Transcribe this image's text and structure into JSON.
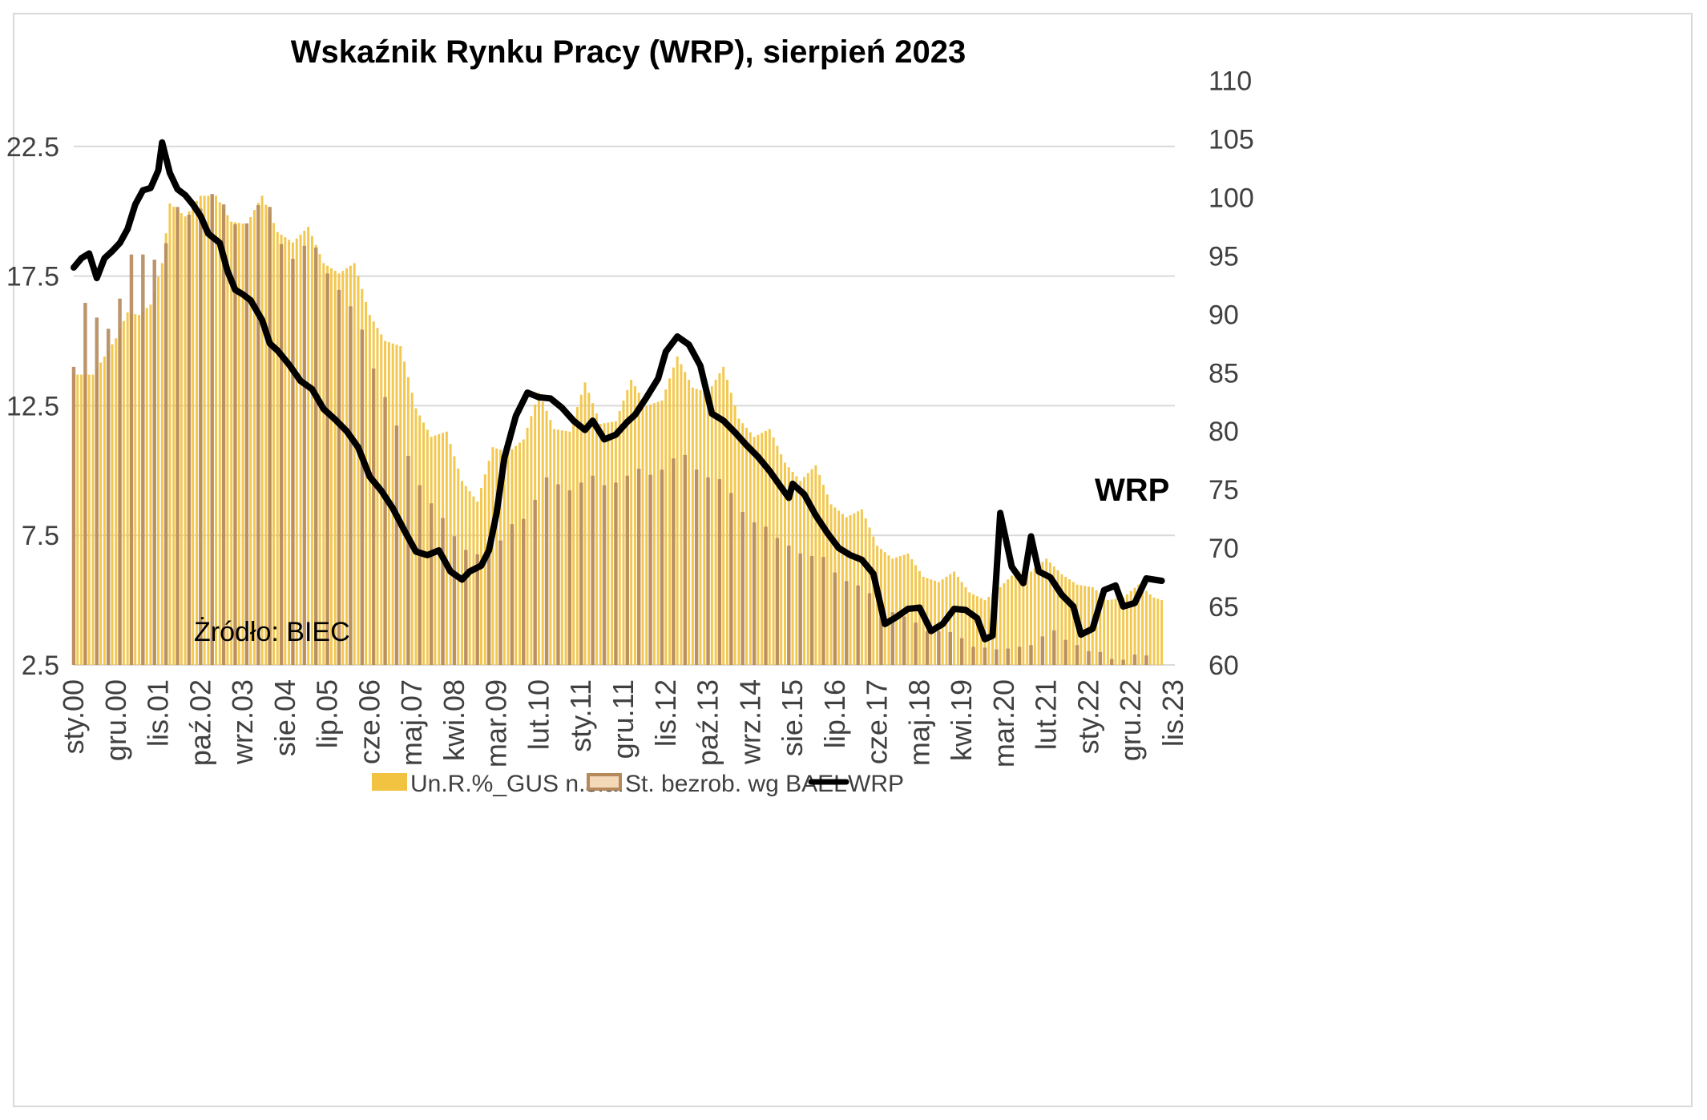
{
  "chart_data": {
    "type": "bar+line",
    "title": "Wskaźnik Rynku Pracy (WRP), sierpień 2023",
    "source_note": "Żródło: BIEC",
    "line_label": "WRP",
    "y_left": {
      "ticks": [
        "2.5",
        "7.5",
        "12.5",
        "17.5",
        "22.5"
      ],
      "ylim": [
        2.5,
        25
      ]
    },
    "y_right": {
      "ticks": [
        "60",
        "65",
        "70",
        "75",
        "80",
        "85",
        "90",
        "95",
        "100",
        "105",
        "110"
      ],
      "ylim": [
        60,
        110
      ]
    },
    "x_axis": {
      "start": "2000-01",
      "end": "2023-11",
      "tick_labels": [
        "sty.00",
        "gru.00",
        "lis.01",
        "paź.02",
        "wrz.03",
        "sie.04",
        "lip.05",
        "cze.06",
        "maj.07",
        "kwi.08",
        "mar.09",
        "lut.10",
        "sty.11",
        "gru.11",
        "lis.12",
        "paź.13",
        "wrz.14",
        "sie.15",
        "lip.16",
        "cze.17",
        "maj.18",
        "kwi.19",
        "mar.20",
        "lut.21",
        "sty.22",
        "gru.22",
        "lis.23"
      ]
    },
    "grid": true,
    "legend_position": "bottom",
    "series": [
      {
        "name": "Un.R.%_GUS n.s.a.",
        "type": "bar",
        "color": "#f2c341",
        "points": [
          [
            "2000-01",
            13.7
          ],
          [
            "2000-06",
            13.7
          ],
          [
            "2000-12",
            15.1
          ],
          [
            "2001-03",
            16.1
          ],
          [
            "2001-06",
            16.0
          ],
          [
            "2001-09",
            16.4
          ],
          [
            "2001-12",
            18.0
          ],
          [
            "2002-02",
            20.3
          ],
          [
            "2002-06",
            19.8
          ],
          [
            "2002-10",
            20.6
          ],
          [
            "2003-02",
            20.6
          ],
          [
            "2003-06",
            19.6
          ],
          [
            "2003-10",
            19.5
          ],
          [
            "2004-02",
            20.6
          ],
          [
            "2004-06",
            19.2
          ],
          [
            "2004-10",
            18.8
          ],
          [
            "2005-02",
            19.4
          ],
          [
            "2005-06",
            18.0
          ],
          [
            "2005-10",
            17.6
          ],
          [
            "2006-02",
            18.0
          ],
          [
            "2006-06",
            16.0
          ],
          [
            "2006-10",
            15.0
          ],
          [
            "2007-02",
            14.8
          ],
          [
            "2007-06",
            12.4
          ],
          [
            "2007-10",
            11.3
          ],
          [
            "2008-02",
            11.5
          ],
          [
            "2008-06",
            9.6
          ],
          [
            "2008-10",
            8.8
          ],
          [
            "2009-02",
            10.9
          ],
          [
            "2009-06",
            10.7
          ],
          [
            "2009-10",
            11.2
          ],
          [
            "2010-02",
            13.0
          ],
          [
            "2010-06",
            11.6
          ],
          [
            "2010-10",
            11.5
          ],
          [
            "2011-02",
            13.4
          ],
          [
            "2011-06",
            11.8
          ],
          [
            "2011-10",
            11.9
          ],
          [
            "2012-02",
            13.5
          ],
          [
            "2012-06",
            12.5
          ],
          [
            "2012-10",
            12.7
          ],
          [
            "2013-02",
            14.4
          ],
          [
            "2013-06",
            13.2
          ],
          [
            "2013-10",
            13.0
          ],
          [
            "2014-02",
            14.0
          ],
          [
            "2014-06",
            12.0
          ],
          [
            "2014-10",
            11.3
          ],
          [
            "2015-02",
            11.6
          ],
          [
            "2015-06",
            10.3
          ],
          [
            "2015-10",
            9.6
          ],
          [
            "2016-02",
            10.2
          ],
          [
            "2016-06",
            8.7
          ],
          [
            "2016-10",
            8.2
          ],
          [
            "2017-02",
            8.5
          ],
          [
            "2017-06",
            7.1
          ],
          [
            "2017-10",
            6.6
          ],
          [
            "2018-02",
            6.8
          ],
          [
            "2018-06",
            5.9
          ],
          [
            "2018-10",
            5.7
          ],
          [
            "2019-02",
            6.1
          ],
          [
            "2019-06",
            5.3
          ],
          [
            "2019-10",
            5.0
          ],
          [
            "2020-02",
            5.5
          ],
          [
            "2020-06",
            6.1
          ],
          [
            "2020-10",
            6.1
          ],
          [
            "2021-02",
            6.6
          ],
          [
            "2021-06",
            6.0
          ],
          [
            "2021-10",
            5.6
          ],
          [
            "2022-02",
            5.5
          ],
          [
            "2022-06",
            5.0
          ],
          [
            "2022-10",
            5.1
          ],
          [
            "2023-02",
            5.6
          ],
          [
            "2023-06",
            5.1
          ],
          [
            "2023-08",
            5.0
          ]
        ]
      },
      {
        "name": "St. bezrob. wg BAEL",
        "type": "bar",
        "color": "#b5895c",
        "points": [
          [
            "2000-01",
            14.0
          ],
          [
            "2000-03",
            16.6
          ],
          [
            "2000-06",
            16.2
          ],
          [
            "2000-09",
            15.3
          ],
          [
            "2000-12",
            15.8
          ],
          [
            "2001-03",
            18.3
          ],
          [
            "2001-06",
            18.4
          ],
          [
            "2001-09",
            18.2
          ],
          [
            "2001-12",
            18.0
          ],
          [
            "2002-03",
            20.3
          ],
          [
            "2002-06",
            19.9
          ],
          [
            "2002-09",
            19.8
          ],
          [
            "2002-12",
            20.7
          ],
          [
            "2003-03",
            20.6
          ],
          [
            "2003-06",
            19.6
          ],
          [
            "2003-09",
            19.3
          ],
          [
            "2003-12",
            20.0
          ],
          [
            "2004-03",
            20.7
          ],
          [
            "2004-06",
            19.1
          ],
          [
            "2004-09",
            18.0
          ],
          [
            "2004-12",
            18.5
          ],
          [
            "2005-03",
            19.0
          ],
          [
            "2005-06",
            17.8
          ],
          [
            "2005-09",
            17.2
          ],
          [
            "2005-12",
            16.5
          ],
          [
            "2006-03",
            16.0
          ],
          [
            "2006-06",
            14.3
          ],
          [
            "2006-09",
            13.2
          ],
          [
            "2006-12",
            12.1
          ],
          [
            "2007-03",
            11.0
          ],
          [
            "2007-06",
            9.7
          ],
          [
            "2007-09",
            8.9
          ],
          [
            "2007-12",
            8.4
          ],
          [
            "2008-03",
            7.7
          ],
          [
            "2008-06",
            7.0
          ],
          [
            "2008-09",
            6.8
          ],
          [
            "2008-12",
            6.7
          ],
          [
            "2009-03",
            7.0
          ],
          [
            "2009-06",
            7.9
          ],
          [
            "2009-09",
            8.0
          ],
          [
            "2009-12",
            8.4
          ],
          [
            "2010-03",
            9.8
          ],
          [
            "2010-06",
            9.6
          ],
          [
            "2010-09",
            9.2
          ],
          [
            "2010-12",
            9.3
          ],
          [
            "2011-03",
            10.0
          ],
          [
            "2011-06",
            9.4
          ],
          [
            "2011-09",
            9.5
          ],
          [
            "2011-12",
            9.6
          ],
          [
            "2012-03",
            10.2
          ],
          [
            "2012-06",
            9.8
          ],
          [
            "2012-09",
            9.9
          ],
          [
            "2012-12",
            10.3
          ],
          [
            "2013-03",
            10.8
          ],
          [
            "2013-06",
            10.2
          ],
          [
            "2013-09",
            9.7
          ],
          [
            "2013-12",
            9.8
          ],
          [
            "2014-03",
            9.4
          ],
          [
            "2014-06",
            8.6
          ],
          [
            "2014-09",
            8.0
          ],
          [
            "2014-12",
            8.0
          ],
          [
            "2015-03",
            7.5
          ],
          [
            "2015-06",
            7.2
          ],
          [
            "2015-09",
            6.9
          ],
          [
            "2015-12",
            6.6
          ],
          [
            "2016-03",
            6.9
          ],
          [
            "2016-06",
            6.2
          ],
          [
            "2016-09",
            5.8
          ],
          [
            "2016-12",
            5.6
          ],
          [
            "2017-03",
            5.5
          ],
          [
            "2017-06",
            4.8
          ],
          [
            "2017-09",
            4.6
          ],
          [
            "2017-12",
            4.4
          ],
          [
            "2018-03",
            4.3
          ],
          [
            "2018-06",
            3.8
          ],
          [
            "2018-09",
            3.8
          ],
          [
            "2018-12",
            3.8
          ],
          [
            "2019-03",
            3.7
          ],
          [
            "2019-06",
            3.2
          ],
          [
            "2019-09",
            3.2
          ],
          [
            "2019-12",
            3.1
          ],
          [
            "2020-03",
            3.1
          ],
          [
            "2020-06",
            3.2
          ],
          [
            "2020-09",
            3.2
          ],
          [
            "2020-12",
            3.4
          ],
          [
            "2021-03",
            4.0
          ],
          [
            "2021-06",
            3.5
          ],
          [
            "2021-09",
            3.4
          ],
          [
            "2021-12",
            3.0
          ],
          [
            "2022-03",
            3.1
          ],
          [
            "2022-06",
            2.8
          ],
          [
            "2022-09",
            2.6
          ],
          [
            "2022-12",
            2.9
          ],
          [
            "2023-03",
            2.9
          ],
          [
            "2023-06",
            2.8
          ]
        ]
      },
      {
        "name": "WRP",
        "type": "line",
        "axis": "right",
        "color": "#000000",
        "points": [
          [
            "2000-01",
            94.0
          ],
          [
            "2000-03",
            94.8
          ],
          [
            "2000-05",
            95.2
          ],
          [
            "2000-07",
            93.1
          ],
          [
            "2000-09",
            94.8
          ],
          [
            "2000-11",
            95.4
          ],
          [
            "2001-01",
            96.1
          ],
          [
            "2001-03",
            97.3
          ],
          [
            "2001-05",
            99.4
          ],
          [
            "2001-07",
            100.6
          ],
          [
            "2001-09",
            100.8
          ],
          [
            "2001-11",
            102.3
          ],
          [
            "2001-12",
            104.7
          ],
          [
            "2002-02",
            102.1
          ],
          [
            "2002-04",
            100.7
          ],
          [
            "2002-06",
            100.2
          ],
          [
            "2002-08",
            99.4
          ],
          [
            "2002-10",
            98.4
          ],
          [
            "2002-12",
            96.9
          ],
          [
            "2003-03",
            96.1
          ],
          [
            "2003-05",
            93.7
          ],
          [
            "2003-07",
            92.1
          ],
          [
            "2003-09",
            91.7
          ],
          [
            "2003-11",
            91.2
          ],
          [
            "2004-02",
            89.5
          ],
          [
            "2004-04",
            87.5
          ],
          [
            "2004-06",
            86.9
          ],
          [
            "2004-09",
            85.7
          ],
          [
            "2004-12",
            84.3
          ],
          [
            "2005-03",
            83.6
          ],
          [
            "2005-06",
            81.9
          ],
          [
            "2005-09",
            81.0
          ],
          [
            "2005-12",
            80.0
          ],
          [
            "2006-03",
            78.6
          ],
          [
            "2006-06",
            76.1
          ],
          [
            "2006-09",
            74.9
          ],
          [
            "2006-12",
            73.4
          ],
          [
            "2007-03",
            71.5
          ],
          [
            "2007-06",
            69.7
          ],
          [
            "2007-09",
            69.4
          ],
          [
            "2007-12",
            69.8
          ],
          [
            "2008-03",
            68.0
          ],
          [
            "2008-06",
            67.3
          ],
          [
            "2008-08",
            68.0
          ],
          [
            "2008-11",
            68.5
          ],
          [
            "2009-01",
            69.8
          ],
          [
            "2009-03",
            73.0
          ],
          [
            "2009-05",
            77.7
          ],
          [
            "2009-08",
            81.3
          ],
          [
            "2009-11",
            83.3
          ],
          [
            "2010-02",
            82.9
          ],
          [
            "2010-05",
            82.8
          ],
          [
            "2010-08",
            82.0
          ],
          [
            "2010-11",
            80.9
          ],
          [
            "2011-02",
            80.1
          ],
          [
            "2011-04",
            80.9
          ],
          [
            "2011-07",
            79.3
          ],
          [
            "2011-10",
            79.7
          ],
          [
            "2012-01",
            80.8
          ],
          [
            "2012-03",
            81.4
          ],
          [
            "2012-06",
            82.9
          ],
          [
            "2012-09",
            84.5
          ],
          [
            "2012-11",
            86.8
          ],
          [
            "2013-02",
            88.1
          ],
          [
            "2013-05",
            87.4
          ],
          [
            "2013-08",
            85.6
          ],
          [
            "2013-11",
            81.5
          ],
          [
            "2014-02",
            80.9
          ],
          [
            "2014-05",
            79.9
          ],
          [
            "2014-08",
            78.8
          ],
          [
            "2014-11",
            77.8
          ],
          [
            "2015-02",
            76.6
          ],
          [
            "2015-05",
            75.2
          ],
          [
            "2015-07",
            74.3
          ],
          [
            "2015-08",
            75.5
          ],
          [
            "2015-11",
            74.6
          ],
          [
            "2016-02",
            72.8
          ],
          [
            "2016-05",
            71.3
          ],
          [
            "2016-08",
            70.0
          ],
          [
            "2016-11",
            69.4
          ],
          [
            "2017-02",
            69.0
          ],
          [
            "2017-05",
            67.8
          ],
          [
            "2017-08",
            63.5
          ],
          [
            "2017-11",
            64.1
          ],
          [
            "2018-02",
            64.8
          ],
          [
            "2018-05",
            64.9
          ],
          [
            "2018-08",
            62.9
          ],
          [
            "2018-11",
            63.5
          ],
          [
            "2019-02",
            64.8
          ],
          [
            "2019-05",
            64.7
          ],
          [
            "2019-08",
            64.0
          ],
          [
            "2019-10",
            62.2
          ],
          [
            "2019-12",
            62.5
          ],
          [
            "2020-02",
            73.0
          ],
          [
            "2020-05",
            68.4
          ],
          [
            "2020-08",
            67.0
          ],
          [
            "2020-10",
            71.0
          ],
          [
            "2020-12",
            68.0
          ],
          [
            "2021-03",
            67.5
          ],
          [
            "2021-06",
            66.0
          ],
          [
            "2021-09",
            65.0
          ],
          [
            "2021-11",
            62.6
          ],
          [
            "2022-02",
            63.1
          ],
          [
            "2022-05",
            66.4
          ],
          [
            "2022-08",
            66.8
          ],
          [
            "2022-10",
            65.0
          ],
          [
            "2023-01",
            65.3
          ],
          [
            "2023-04",
            67.4
          ],
          [
            "2023-08",
            67.2
          ]
        ]
      }
    ]
  }
}
